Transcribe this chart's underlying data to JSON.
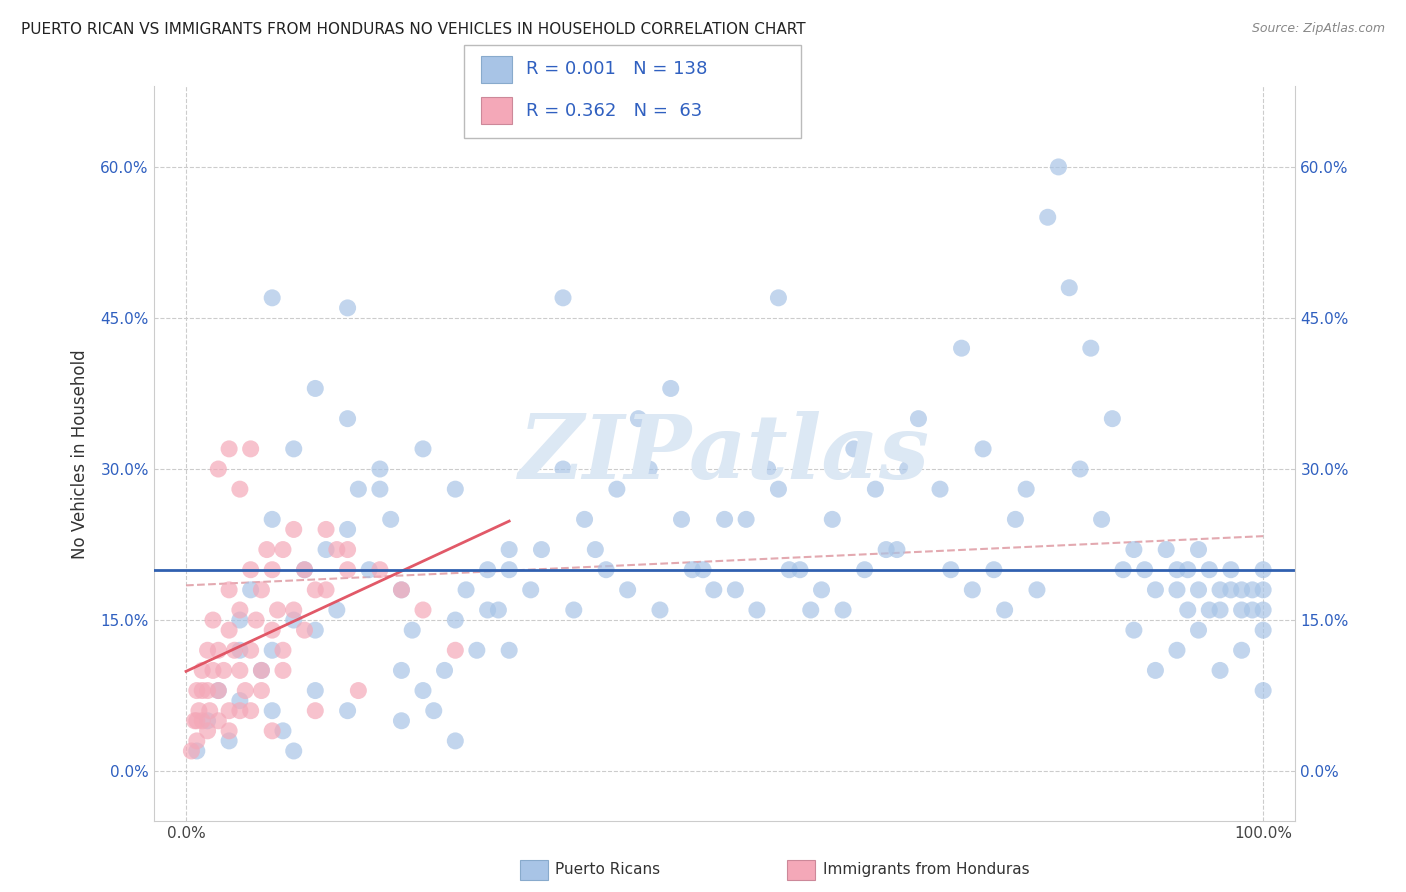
{
  "title": "PUERTO RICAN VS IMMIGRANTS FROM HONDURAS NO VEHICLES IN HOUSEHOLD CORRELATION CHART",
  "source": "Source: ZipAtlas.com",
  "ylabel": "No Vehicles in Household",
  "ytick_labels": [
    "0.0%",
    "15.0%",
    "30.0%",
    "45.0%",
    "60.0%"
  ],
  "ytick_values": [
    0,
    15,
    30,
    45,
    60
  ],
  "xrange": [
    0,
    100
  ],
  "yrange": [
    -5,
    68
  ],
  "r_blue": 0.001,
  "n_blue": 138,
  "r_pink": 0.362,
  "n_pink": 63,
  "legend_labels": [
    "Puerto Ricans",
    "Immigrants from Honduras"
  ],
  "blue_color": "#a8c4e6",
  "pink_color": "#f4a8b8",
  "trendline_blue_color": "#d8b0b8",
  "trendline_pink_color": "#e05060",
  "hline_color": "#3060b0",
  "legend_text_color": "#3060c0",
  "watermark_text": "ZIPatlas",
  "watermark_color": "#dce8f4"
}
